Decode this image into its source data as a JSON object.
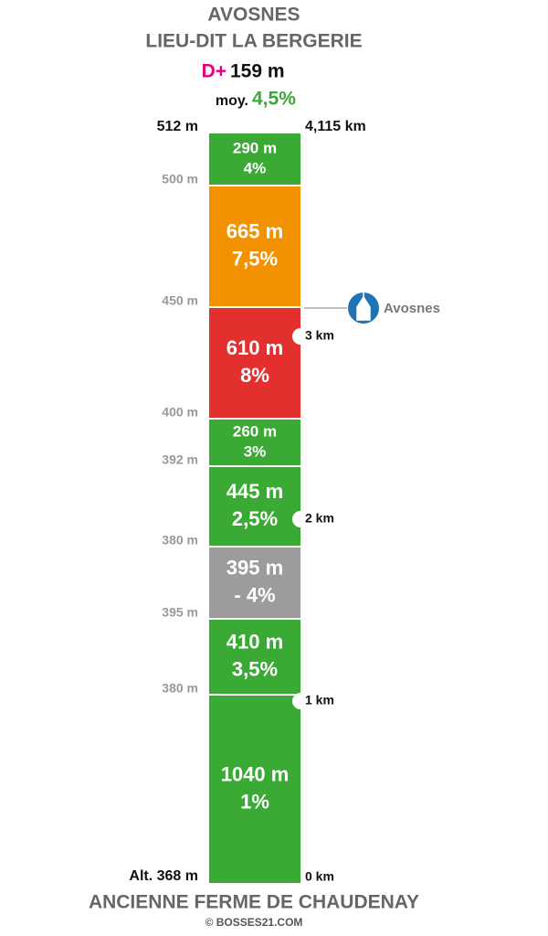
{
  "header": {
    "title": [
      "AVOSNES",
      "LIEU-DIT LA BERGERIE"
    ],
    "dplus_label": "D+",
    "dplus_value": "159 m",
    "avg_label": "moy.",
    "avg_value": "4,5%"
  },
  "top": {
    "altitude": "512 m",
    "distance": "4,115 km"
  },
  "segments": [
    {
      "length": "290 m",
      "grade": "4%",
      "color": "#3aaa35"
    },
    {
      "length": "665 m",
      "grade": "7,5%",
      "color": "#f39200"
    },
    {
      "length": "610 m",
      "grade": "8%",
      "color": "#e3302f"
    },
    {
      "length": "260 m",
      "grade": "3%",
      "color": "#3aaa35"
    },
    {
      "length": "445 m",
      "grade": "2,5%",
      "color": "#3aaa35"
    },
    {
      "length": "395 m",
      "grade": "- 4%",
      "color": "#9d9c9c"
    },
    {
      "length": "410 m",
      "grade": "3,5%",
      "color": "#3aaa35"
    },
    {
      "length": "1040 m",
      "grade": "1%",
      "color": "#3aaa35"
    }
  ],
  "altitudes": [
    "500 m",
    "450 m",
    "400 m",
    "392 m",
    "380 m",
    "395 m",
    "380 m"
  ],
  "km_markers": [
    "3 km",
    "2 km",
    "1 km",
    "0 km"
  ],
  "poi": {
    "label": "Avosnes"
  },
  "bottom": {
    "altitude": "Alt. 368 m",
    "place": "ANCIENNE FERME DE CHAUDENAY",
    "credit": "© BOSSES21.COM"
  }
}
